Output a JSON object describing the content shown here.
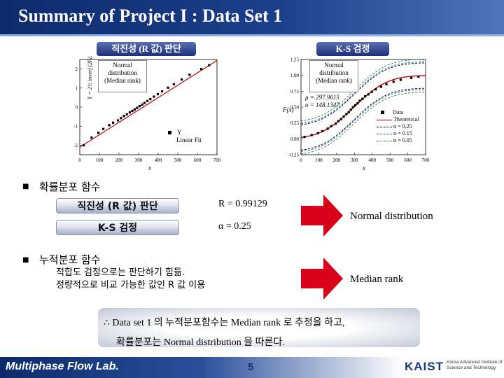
{
  "header": {
    "title": "Summary of Project I : Data Set 1"
  },
  "left_plot": {
    "heading": "직진성 (R 값) 판단",
    "ylabel": "Y = 2½ inverf (2F(x) - 1)",
    "xlabel": "x",
    "note": "Normal distribution (Median rank)",
    "legend": [
      "Y",
      "Linear Fit"
    ],
    "x_ticks": [
      "0",
      "100",
      "200",
      "300",
      "400",
      "500",
      "600",
      "700"
    ],
    "y_ticks": [
      "-2",
      "-1",
      "0",
      "1",
      "2"
    ]
  },
  "right_plot": {
    "heading": "K-S 검정",
    "ylabel": "F(x)",
    "xlabel": "x",
    "note": "Normal distribution (Median rank)",
    "params": [
      "μ = 297.9615",
      "σ = 148.1347"
    ],
    "legend": [
      "Data",
      "Theoretical",
      "α = 0.25",
      "α = 0.15",
      "α = 0.05"
    ],
    "x_ticks": [
      "0",
      "100",
      "200",
      "300",
      "400",
      "500",
      "600",
      "700"
    ],
    "y_ticks": [
      "-0.25",
      "0.00",
      "0.25",
      "0.50",
      "0.75",
      "1.00",
      "1.25"
    ]
  },
  "pdf_section": {
    "heading": "확률분포 함수",
    "box1": "직진성 (R 값) 판단",
    "value1": "R = 0.99129",
    "box2": "K-S 검정",
    "value2": "α = 0.25",
    "result": "Normal distribution"
  },
  "cdf_section": {
    "heading": "누적분포 함수",
    "line1": "적합도 검정으로는 판단하기 힘듦.",
    "line2": "정량적으로 비교 가능한 값인 R 값 이용",
    "result": "Median rank"
  },
  "conclusion": {
    "line1": "∴ Data set 1 의 누적분포함수는 Median rank 로 추정을 하고,",
    "line2": "확률분포는 Normal distribution 을 따른다."
  },
  "footer": {
    "lab": "Multiphase Flow Lab.",
    "page": "5",
    "logo": "KAIST",
    "institute": "Korea Advanced Institute of Science and Technology"
  },
  "colors": {
    "accent": "#1d2f7a",
    "arrow": "#d9001b"
  },
  "chart_data": [
    {
      "type": "scatter",
      "title": "직진성 (R 값) 판단",
      "xlabel": "x",
      "ylabel": "Y = 2½ inverf (2F(x) - 1)",
      "xlim": [
        0,
        700
      ],
      "ylim": [
        -2.5,
        2.5
      ],
      "series": [
        {
          "name": "Y",
          "x": [
            20,
            60,
            95,
            120,
            150,
            170,
            195,
            210,
            225,
            240,
            255,
            268,
            280,
            292,
            305,
            318,
            330,
            345,
            360,
            378,
            398,
            420,
            450,
            480,
            520,
            560,
            620,
            660
          ],
          "y": [
            -2.0,
            -1.6,
            -1.35,
            -1.15,
            -0.95,
            -0.82,
            -0.7,
            -0.58,
            -0.47,
            -0.38,
            -0.28,
            -0.2,
            -0.12,
            -0.04,
            0.05,
            0.13,
            0.22,
            0.32,
            0.42,
            0.55,
            0.68,
            0.83,
            1.02,
            1.2,
            1.45,
            1.7,
            2.0,
            2.2
          ]
        },
        {
          "name": "Linear Fit",
          "x": [
            0,
            700
          ],
          "y": [
            -2.1,
            2.45
          ]
        }
      ]
    },
    {
      "type": "line",
      "title": "K-S 검정",
      "xlabel": "x",
      "ylabel": "F(x)",
      "xlim": [
        0,
        700
      ],
      "ylim": [
        -0.25,
        1.25
      ],
      "series": [
        {
          "name": "Data",
          "x": [
            20,
            60,
            95,
            120,
            150,
            170,
            195,
            210,
            225,
            240,
            255,
            268,
            280,
            292,
            305,
            318,
            330,
            345,
            360,
            378,
            398,
            420,
            450,
            480,
            520,
            560,
            620,
            660
          ],
          "y": [
            0.03,
            0.06,
            0.09,
            0.12,
            0.16,
            0.2,
            0.24,
            0.28,
            0.31,
            0.35,
            0.39,
            0.42,
            0.46,
            0.5,
            0.53,
            0.56,
            0.6,
            0.63,
            0.67,
            0.7,
            0.74,
            0.78,
            0.82,
            0.86,
            0.9,
            0.93,
            0.96,
            0.98
          ]
        },
        {
          "name": "Theoretical",
          "mu": 297.9615,
          "sigma": 148.1347
        },
        {
          "name": "α = 0.25",
          "offset": 0.2
        },
        {
          "name": "α = 0.15",
          "offset": 0.22
        },
        {
          "name": "α = 0.05",
          "offset": 0.26
        }
      ]
    }
  ]
}
